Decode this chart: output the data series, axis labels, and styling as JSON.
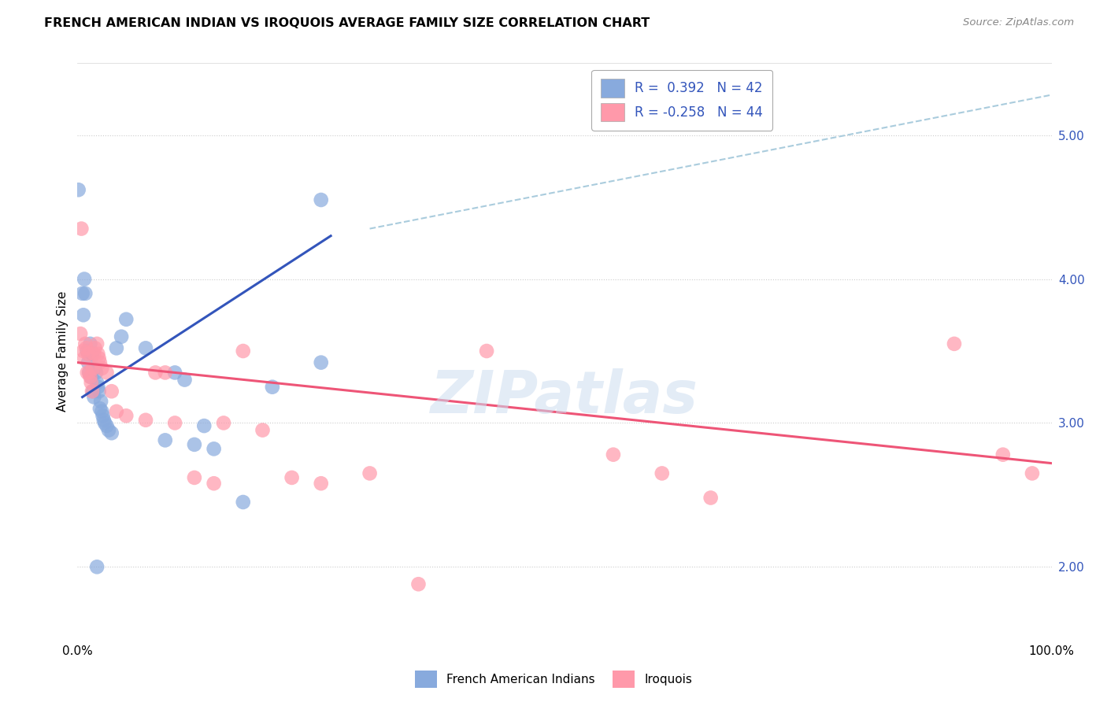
{
  "title": "FRENCH AMERICAN INDIAN VS IROQUOIS AVERAGE FAMILY SIZE CORRELATION CHART",
  "source": "Source: ZipAtlas.com",
  "ylabel": "Average Family Size",
  "xlim": [
    0.0,
    1.0
  ],
  "ylim": [
    1.5,
    5.5
  ],
  "xtick_labels": [
    "0.0%",
    "100.0%"
  ],
  "ytick_labels_right": [
    "2.00",
    "3.00",
    "4.00",
    "5.00"
  ],
  "ytick_vals_right": [
    2.0,
    3.0,
    4.0,
    5.0
  ],
  "color_blue": "#88AADD",
  "color_pink": "#FF99AA",
  "color_dashed": "#AACCDD",
  "color_blue_line": "#3355BB",
  "color_pink_line": "#EE5577",
  "watermark": "ZIPatlas",
  "blue_scatter": [
    [
      0.001,
      4.62
    ],
    [
      0.005,
      3.9
    ],
    [
      0.006,
      3.75
    ],
    [
      0.007,
      4.0
    ],
    [
      0.008,
      3.9
    ],
    [
      0.01,
      3.5
    ],
    [
      0.011,
      3.42
    ],
    [
      0.012,
      3.35
    ],
    [
      0.013,
      3.55
    ],
    [
      0.014,
      3.32
    ],
    [
      0.015,
      3.48
    ],
    [
      0.016,
      3.22
    ],
    [
      0.017,
      3.18
    ],
    [
      0.018,
      3.38
    ],
    [
      0.019,
      3.35
    ],
    [
      0.02,
      3.28
    ],
    [
      0.021,
      3.25
    ],
    [
      0.022,
      3.22
    ],
    [
      0.023,
      3.1
    ],
    [
      0.024,
      3.15
    ],
    [
      0.025,
      3.08
    ],
    [
      0.026,
      3.05
    ],
    [
      0.027,
      3.02
    ],
    [
      0.028,
      3.0
    ],
    [
      0.03,
      2.98
    ],
    [
      0.032,
      2.95
    ],
    [
      0.035,
      2.93
    ],
    [
      0.04,
      3.52
    ],
    [
      0.045,
      3.6
    ],
    [
      0.05,
      3.72
    ],
    [
      0.07,
      3.52
    ],
    [
      0.09,
      2.88
    ],
    [
      0.1,
      3.35
    ],
    [
      0.11,
      3.3
    ],
    [
      0.12,
      2.85
    ],
    [
      0.13,
      2.98
    ],
    [
      0.14,
      2.82
    ],
    [
      0.17,
      2.45
    ],
    [
      0.2,
      3.25
    ],
    [
      0.25,
      4.55
    ],
    [
      0.25,
      3.42
    ],
    [
      0.02,
      2.0
    ]
  ],
  "pink_scatter": [
    [
      0.003,
      3.62
    ],
    [
      0.004,
      4.35
    ],
    [
      0.006,
      3.5
    ],
    [
      0.007,
      3.45
    ],
    [
      0.008,
      3.55
    ],
    [
      0.009,
      3.52
    ],
    [
      0.01,
      3.35
    ],
    [
      0.011,
      3.48
    ],
    [
      0.012,
      3.35
    ],
    [
      0.013,
      3.32
    ],
    [
      0.014,
      3.28
    ],
    [
      0.015,
      3.22
    ],
    [
      0.016,
      3.38
    ],
    [
      0.017,
      3.48
    ],
    [
      0.018,
      3.52
    ],
    [
      0.02,
      3.55
    ],
    [
      0.021,
      3.48
    ],
    [
      0.022,
      3.45
    ],
    [
      0.023,
      3.42
    ],
    [
      0.025,
      3.38
    ],
    [
      0.03,
      3.35
    ],
    [
      0.035,
      3.22
    ],
    [
      0.04,
      3.08
    ],
    [
      0.05,
      3.05
    ],
    [
      0.07,
      3.02
    ],
    [
      0.08,
      3.35
    ],
    [
      0.09,
      3.35
    ],
    [
      0.1,
      3.0
    ],
    [
      0.12,
      2.62
    ],
    [
      0.14,
      2.58
    ],
    [
      0.15,
      3.0
    ],
    [
      0.17,
      3.5
    ],
    [
      0.19,
      2.95
    ],
    [
      0.22,
      2.62
    ],
    [
      0.25,
      2.58
    ],
    [
      0.3,
      2.65
    ],
    [
      0.35,
      1.88
    ],
    [
      0.42,
      3.5
    ],
    [
      0.55,
      2.78
    ],
    [
      0.6,
      2.65
    ],
    [
      0.65,
      2.48
    ],
    [
      0.9,
      3.55
    ],
    [
      0.95,
      2.78
    ],
    [
      0.98,
      2.65
    ]
  ],
  "blue_line_x": [
    0.005,
    0.26
  ],
  "blue_line_y": [
    3.18,
    4.3
  ],
  "pink_line_x": [
    0.0,
    1.0
  ],
  "pink_line_y": [
    3.42,
    2.72
  ],
  "dashed_line_x": [
    0.3,
    1.0
  ],
  "dashed_line_y": [
    4.35,
    5.28
  ]
}
